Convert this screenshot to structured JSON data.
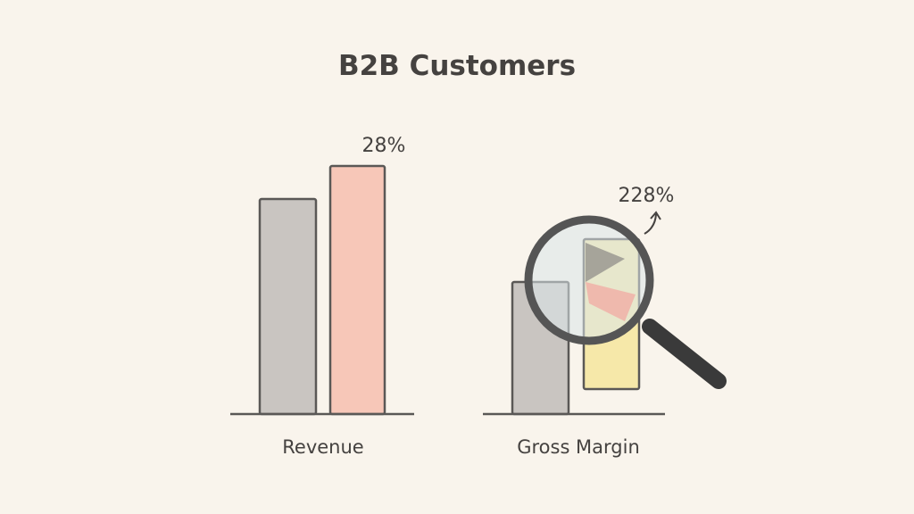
{
  "title": "B2B Customers",
  "groups": [
    {
      "label": "Revenue",
      "annotation": "28%"
    },
    {
      "label": "Gross Margin",
      "annotation": "228%"
    }
  ]
}
